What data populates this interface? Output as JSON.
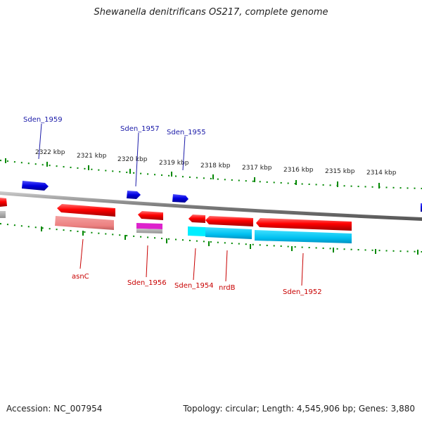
{
  "title": "Shewanella denitrificans OS217, complete genome",
  "footer": {
    "accession": "Accession: NC_007954",
    "summary": "Topology: circular; Length: 4,545,906 bp; Genes: 3,880"
  },
  "scale_labels": [
    "2322 kbp",
    "2321 kbp",
    "2320 kbp",
    "2319 kbp",
    "2318 kbp",
    "2317 kbp",
    "2316 kbp",
    "2315 kbp",
    "2314 kbp"
  ],
  "forward_gene_labels": [
    "Sden_1959",
    "Sden_1957",
    "Sden_1955"
  ],
  "reverse_gene_labels": [
    "asnC",
    "Sden_1956",
    "Sden_1954",
    "nrdB",
    "Sden_1952"
  ],
  "colors": {
    "forward_gene": "#0000dd",
    "reverse_gene": "#ee0000",
    "rna_light": "#f09090",
    "cyan_feature": "#00ccff",
    "magenta_feature": "#dd22cc",
    "tick": "#008800",
    "backbone": "#888888"
  }
}
